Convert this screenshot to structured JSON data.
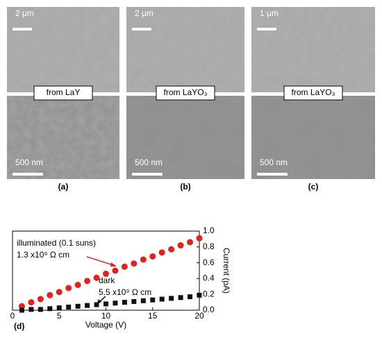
{
  "panels": [
    {
      "label": "(a)",
      "top_scale": "2 μm",
      "bottom_scale": "500 nm",
      "caption": "from LaY"
    },
    {
      "label": "(b)",
      "top_scale": "2 μm",
      "bottom_scale": "500 nm",
      "caption": "from LaYO₃"
    },
    {
      "label": "(c)",
      "top_scale": "1 μm",
      "bottom_scale": "500 nm",
      "caption": "from LaYO₃"
    }
  ],
  "chart_data": {
    "type": "scatter",
    "label": "(d)",
    "x_label": "Voltage (V)",
    "y_label": "Current (pA)",
    "xlim": [
      0,
      20
    ],
    "xticks": [
      0,
      5,
      10,
      15,
      20
    ],
    "ylim": [
      0,
      1
    ],
    "yticks": [
      {
        "value": 0,
        "label": "0.0"
      },
      0.2,
      0.4,
      0.6,
      0.8,
      {
        "value": 1,
        "label": "1.0"
      }
    ],
    "annotations": [
      "illuminated (0.1 suns)",
      "1.3 x10⁹ Ω cm",
      "dark",
      "5.5 x10⁹ Ω cm"
    ],
    "series": [
      {
        "name": "illuminated",
        "color": "#e8201c",
        "marker": "circle",
        "x": [
          1,
          2,
          3,
          4,
          5,
          6,
          7,
          8,
          9,
          10,
          11,
          12,
          13,
          14,
          15,
          16,
          17,
          18,
          19,
          20
        ],
        "values": [
          0.05,
          0.1,
          0.14,
          0.19,
          0.23,
          0.28,
          0.32,
          0.37,
          0.41,
          0.46,
          0.5,
          0.55,
          0.59,
          0.64,
          0.68,
          0.73,
          0.77,
          0.82,
          0.86,
          0.91
        ]
      },
      {
        "name": "dark",
        "color": "#111111",
        "marker": "square",
        "x": [
          1,
          2,
          3,
          4,
          5,
          6,
          7,
          8,
          9,
          10,
          11,
          12,
          13,
          14,
          15,
          16,
          17,
          18,
          19,
          20
        ],
        "values": [
          0.0,
          0.01,
          0.01,
          0.02,
          0.03,
          0.04,
          0.05,
          0.06,
          0.07,
          0.08,
          0.09,
          0.1,
          0.11,
          0.12,
          0.13,
          0.14,
          0.15,
          0.16,
          0.17,
          0.19
        ]
      }
    ]
  }
}
